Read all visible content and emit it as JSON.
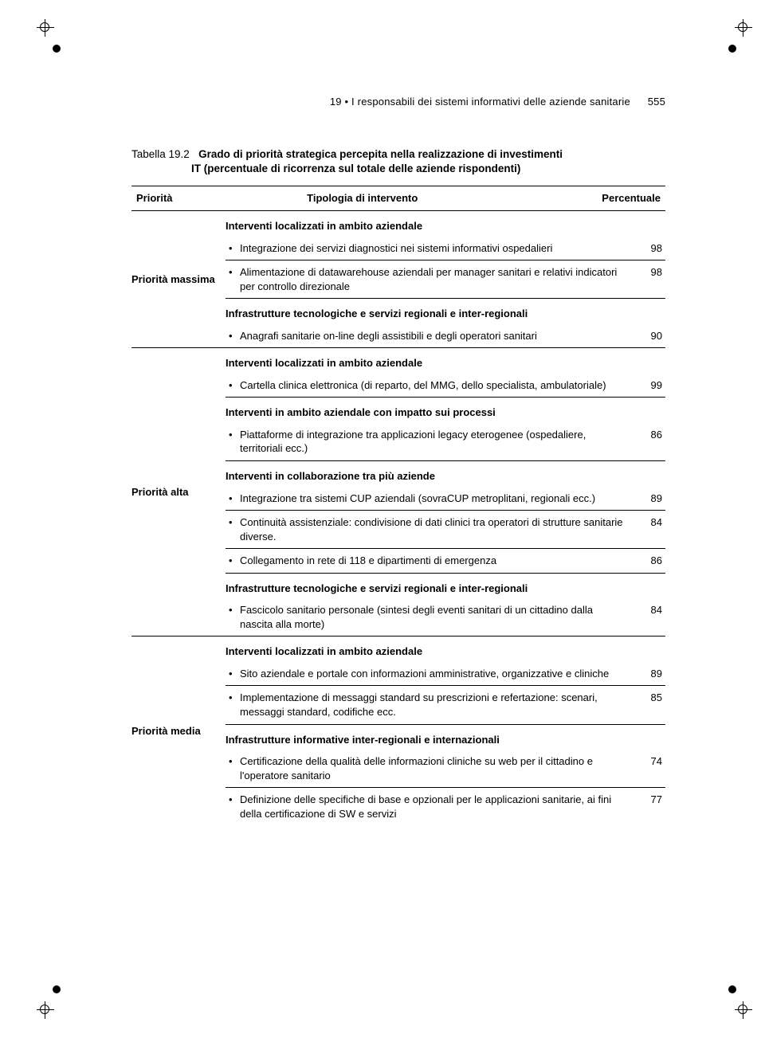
{
  "running_head": {
    "text": "19 • I responsabili dei sistemi informativi delle aziende sanitarie",
    "page_number": "555"
  },
  "caption": {
    "label": "Tabella 19.2",
    "title_line1": "Grado di priorità strategica percepita nella realizzazione di investimenti",
    "title_line2": "IT (percentuale di ricorrenza sul totale delle aziende rispondenti)"
  },
  "columns": {
    "c1": "Priorità",
    "c2": "Tipologia di intervento",
    "c3": "Percentuale"
  },
  "groups": [
    {
      "priority": "Priorità massima",
      "sections": [
        {
          "title": "Interventi localizzati in ambito aziendale",
          "items": [
            {
              "text": "Integrazione dei servizi diagnostici nei sistemi informativi ospedalieri",
              "value": "98"
            },
            {
              "text": "Alimentazione di datawarehouse aziendali per manager sanitari e relativi indicatori per controllo direzionale",
              "value": "98"
            }
          ]
        },
        {
          "title": "Infrastrutture tecnologiche e servizi regionali e inter-regionali",
          "items": [
            {
              "text": "Anagrafi sanitarie on-line degli assistibili e degli operatori sanitari",
              "value": "90"
            }
          ]
        }
      ]
    },
    {
      "priority": "Priorità alta",
      "sections": [
        {
          "title": "Interventi localizzati in ambito aziendale",
          "items": [
            {
              "text": "Cartella clinica elettronica (di reparto, del MMG, dello specialista, ambulatoriale)",
              "value": "99"
            }
          ]
        },
        {
          "title": "Interventi in ambito aziendale con impatto sui processi",
          "items": [
            {
              "text": "Piattaforme di integrazione tra applicazioni legacy eterogenee (ospedaliere, territoriali ecc.)",
              "value": "86"
            }
          ]
        },
        {
          "title": "Interventi in collaborazione tra più aziende",
          "items": [
            {
              "text": "Integrazione tra sistemi CUP aziendali (sovraCUP metroplitani, regionali ecc.)",
              "value": "89"
            },
            {
              "text": "Continuità assistenziale: condivisione di dati clinici tra operatori di strutture sanitarie diverse.",
              "value": "84"
            },
            {
              "text": "Collegamento in rete di 118 e dipartimenti di emergenza",
              "value": "86"
            }
          ]
        },
        {
          "title": "Infrastrutture tecnologiche e servizi regionali e inter-regionali",
          "items": [
            {
              "text": "Fascicolo sanitario personale (sintesi degli eventi sanitari di un cittadino dalla nascita alla morte)",
              "value": "84"
            }
          ]
        }
      ]
    },
    {
      "priority": "Priorità media",
      "sections": [
        {
          "title": "Interventi localizzati in ambito aziendale",
          "items": [
            {
              "text": "Sito aziendale e portale con informazioni amministrative, organizzative e cliniche",
              "value": "89"
            },
            {
              "text": "Implementazione di messaggi standard su prescrizioni e refertazione: scenari, messaggi standard, codifiche ecc.",
              "value": "85"
            }
          ]
        },
        {
          "title": "Infrastrutture informative inter-regionali e internazionali",
          "items": [
            {
              "text": "Certificazione della qualità delle informazioni cliniche su web per il cittadino e l'operatore sanitario",
              "value": "74"
            },
            {
              "text": "Definizione delle specifiche di base e opzionali per le applicazioni sanitarie, ai fini della certificazione di SW e servizi",
              "value": "77"
            }
          ]
        }
      ]
    }
  ]
}
